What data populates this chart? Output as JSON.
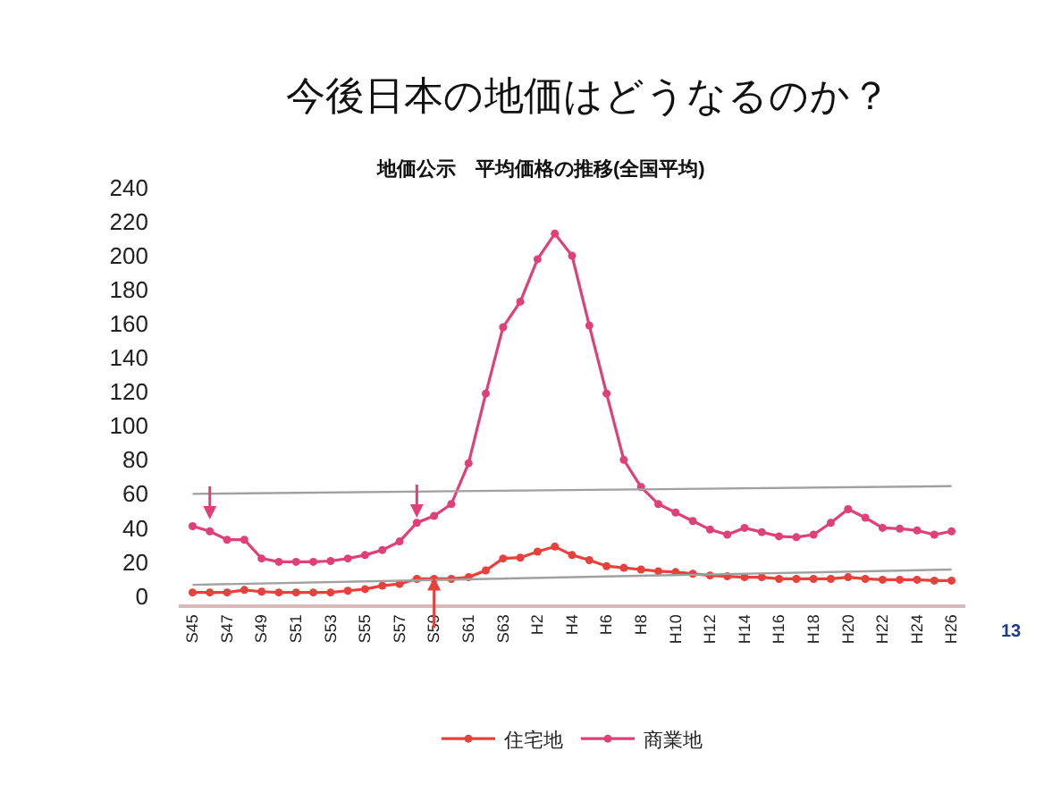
{
  "chart_data": {
    "type": "line",
    "title": "今後日本の地価はどうなるのか？",
    "subtitle": "地価公示　平均価格の推移(全国平均)",
    "annotations": [
      "13"
    ],
    "categories": [
      "S45",
      null,
      "S47",
      null,
      "S49",
      null,
      "S51",
      null,
      "S53",
      null,
      "S55",
      null,
      "S57",
      null,
      "S59",
      null,
      "S61",
      null,
      "S63",
      null,
      "H2",
      null,
      "H4",
      null,
      "H6",
      null,
      "H8",
      null,
      "H10",
      null,
      "H12",
      null,
      "H14",
      null,
      "H16",
      null,
      "H18",
      null,
      "H20",
      null,
      "H22",
      null,
      "H24",
      null,
      "H26"
    ],
    "series": [
      {
        "name": "住宅地",
        "color": "#e8413c",
        "values": [
          2,
          2,
          2,
          3.5,
          2.5,
          2,
          2,
          2,
          2,
          3,
          4,
          6,
          7,
          10,
          10,
          10,
          11,
          15,
          22,
          22.5,
          26,
          29,
          24,
          21,
          17.5,
          16.5,
          15.5,
          14.5,
          14,
          13,
          12,
          11.5,
          11,
          11,
          10,
          10,
          10,
          10,
          11,
          10,
          9.5,
          9.5,
          9.5,
          9,
          9
        ]
      },
      {
        "name": "商業地",
        "color": "#e0407a",
        "values": [
          41,
          38,
          33,
          33,
          22,
          20,
          20,
          20,
          20.5,
          22,
          24,
          27,
          32,
          43,
          47,
          54,
          78,
          119,
          158,
          173,
          198,
          213,
          200,
          159,
          119,
          80,
          64,
          54,
          49,
          44,
          39,
          36,
          40,
          37.5,
          35,
          34.5,
          36,
          43,
          51,
          46,
          40,
          39.5,
          38.5,
          36,
          38
        ]
      },
      {
        "color": "#a0a0a0",
        "marker": "none",
        "values": [
          60,
          null,
          null,
          null,
          null,
          null,
          null,
          null,
          null,
          null,
          null,
          null,
          null,
          null,
          null,
          null,
          null,
          null,
          null,
          null,
          null,
          null,
          null,
          null,
          null,
          null,
          null,
          null,
          null,
          null,
          null,
          null,
          null,
          null,
          null,
          null,
          null,
          null,
          null,
          null,
          null,
          null,
          null,
          null,
          64.5
        ]
      },
      {
        "color": "#a0a0a0",
        "marker": "none",
        "values": [
          6.5,
          null,
          null,
          null,
          null,
          null,
          null,
          null,
          null,
          null,
          null,
          null,
          null,
          null,
          null,
          null,
          null,
          null,
          null,
          null,
          null,
          null,
          null,
          null,
          null,
          null,
          null,
          null,
          null,
          null,
          null,
          null,
          null,
          null,
          null,
          null,
          null,
          null,
          null,
          null,
          null,
          null,
          null,
          null,
          15.5
        ]
      }
    ],
    "ylim": [
      -5,
      240
    ],
    "yticks": [
      0,
      20,
      40,
      60,
      80,
      100,
      120,
      140,
      160,
      180,
      200,
      220,
      240
    ],
    "grid": false,
    "legend": "bottom",
    "marker": "circle",
    "line_style": "solid"
  }
}
